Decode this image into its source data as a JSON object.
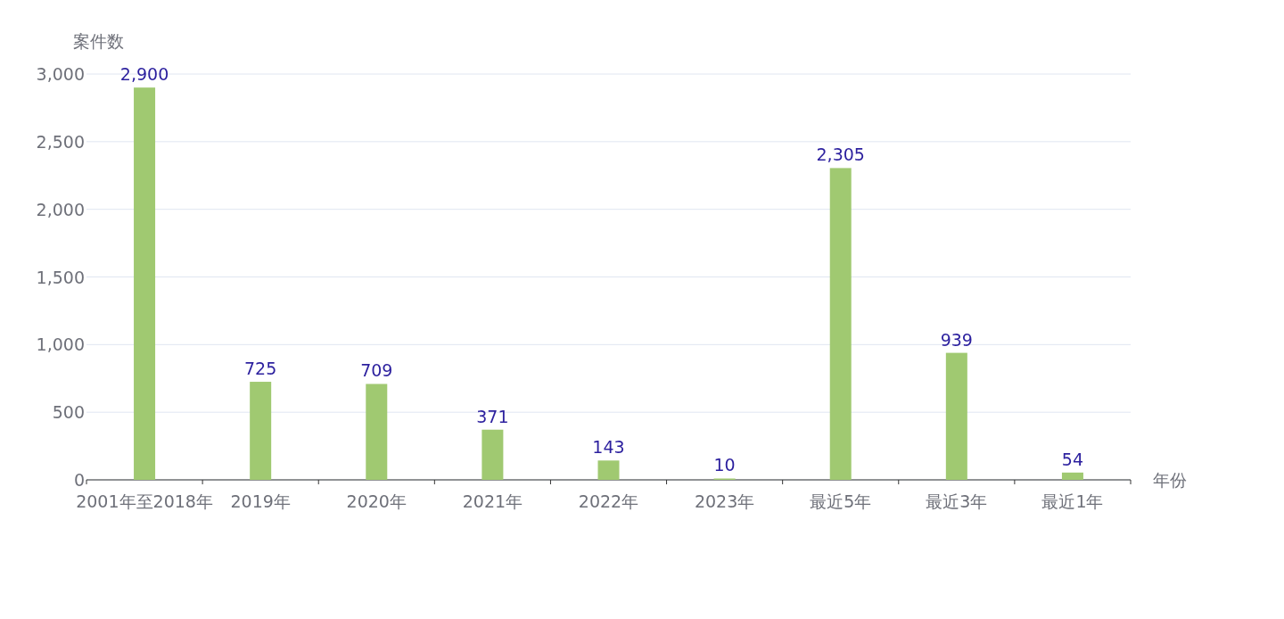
{
  "chart_data": {
    "type": "bar",
    "ylabel": "案件数",
    "xlabel": "年份",
    "categories": [
      "2001年至2018年",
      "2019年",
      "2020年",
      "2021年",
      "2022年",
      "2023年",
      "最近5年",
      "最近3年",
      "最近1年"
    ],
    "values": [
      2900,
      725,
      709,
      371,
      143,
      10,
      2305,
      939,
      54
    ],
    "value_labels": [
      "2,900",
      "725",
      "709",
      "371",
      "143",
      "10",
      "2,305",
      "939",
      "54"
    ],
    "color": "#a0c971",
    "ylim": [
      0,
      3000
    ],
    "yticks": [
      0,
      500,
      {
        "value": 1000,
        "label": "1,000"
      },
      {
        "value": 1500,
        "label": "1,500"
      },
      {
        "value": 2000,
        "label": "2,000"
      },
      {
        "value": 2500,
        "label": "2,500"
      },
      {
        "value": 3000,
        "label": "3,000"
      }
    ],
    "grid": "y"
  }
}
